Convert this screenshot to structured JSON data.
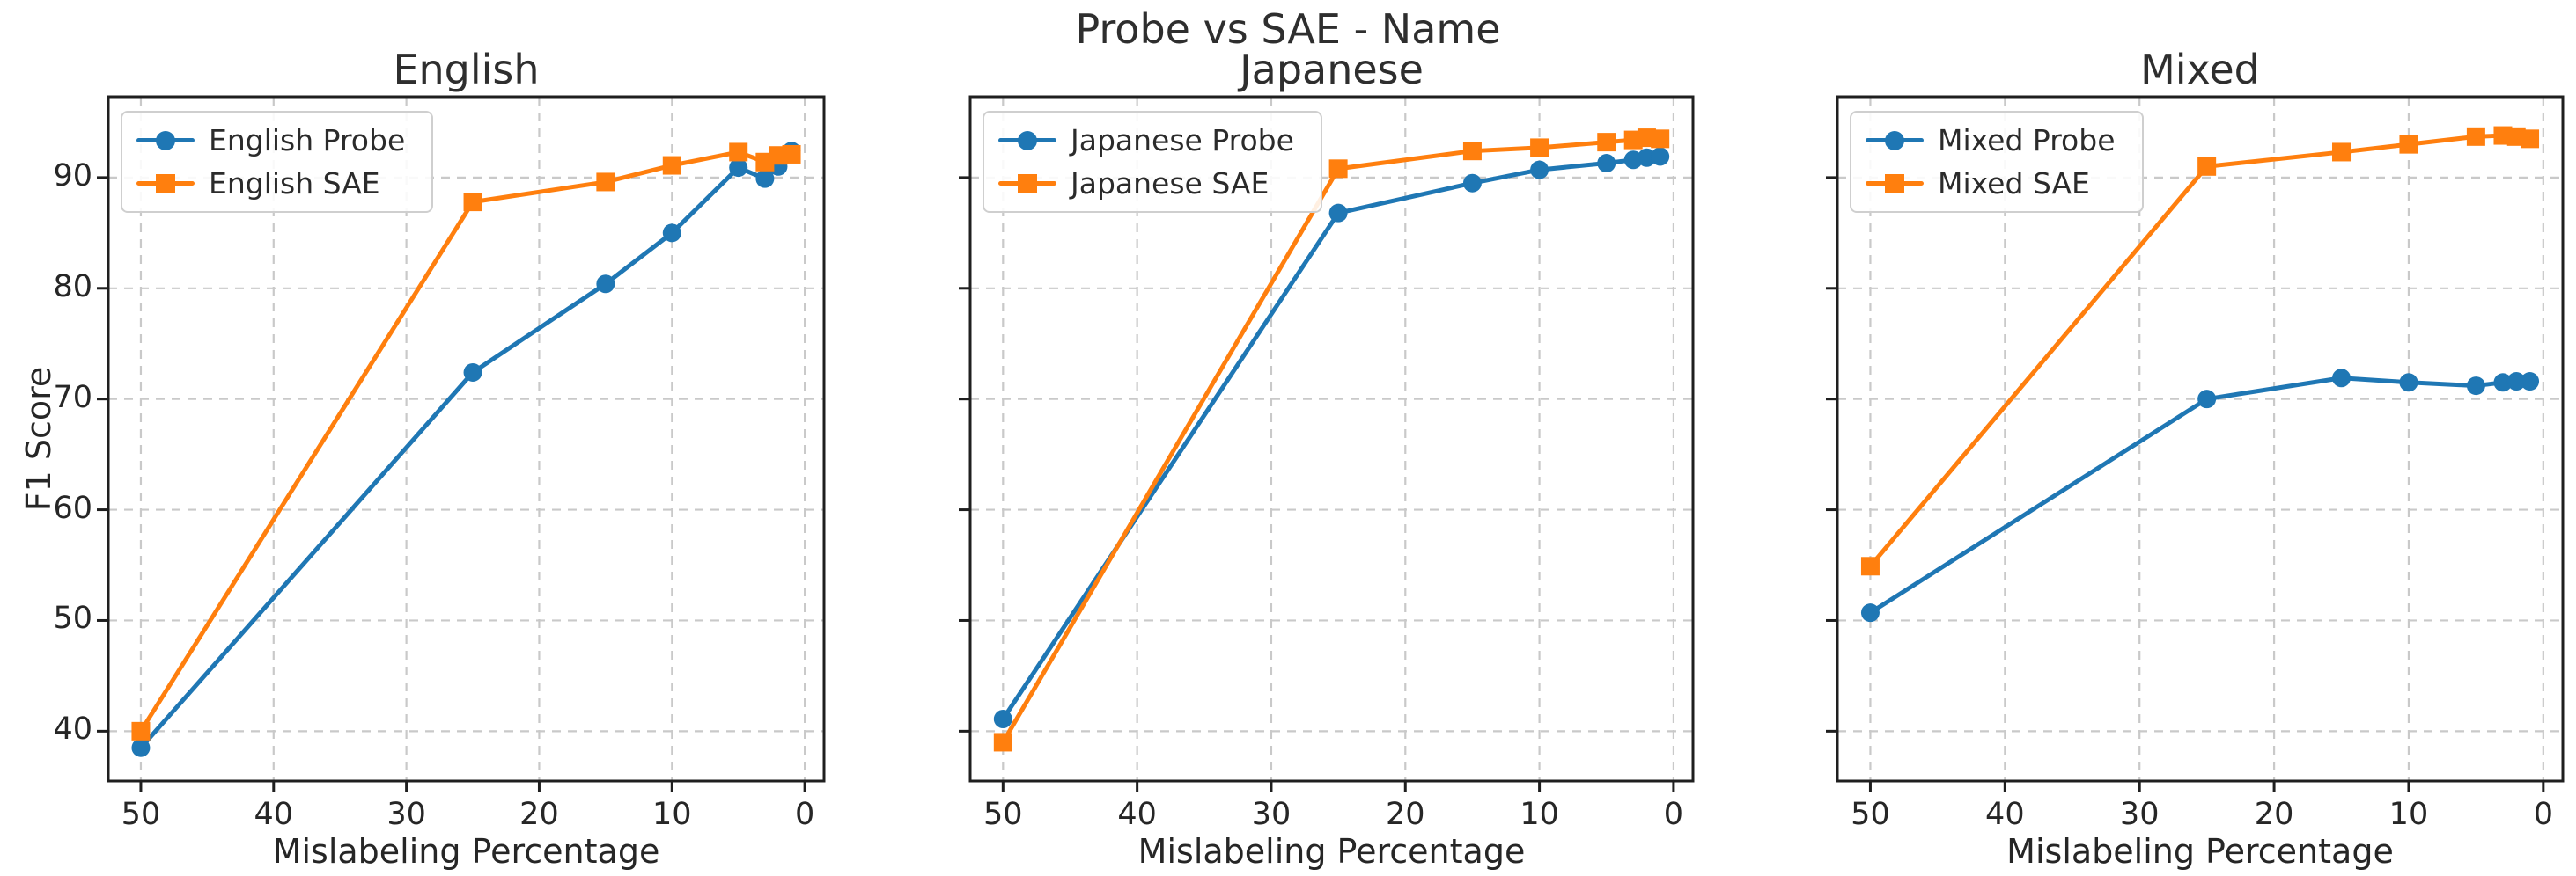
{
  "figure": {
    "suptitle": "Probe vs SAE - Name",
    "background": "#ffffff",
    "text_color": "#262626",
    "grid_color": "#c9c9c9",
    "spine_color": "#1f1f1f",
    "probe_color": "#1f77b4",
    "sae_color": "#ff7f0e"
  },
  "chart_data": [
    {
      "type": "line",
      "title": "English",
      "xlabel": "Mislabeling Percentage",
      "ylabel": "F1 Score",
      "x": [
        50,
        25,
        15,
        10,
        5,
        3,
        2,
        1
      ],
      "x_ticks": [
        50,
        40,
        30,
        20,
        10,
        0
      ],
      "y_ticks": [
        40,
        50,
        60,
        70,
        80,
        90
      ],
      "xlim": [
        52.45,
        -1.45
      ],
      "ylim": [
        35.5,
        97.3
      ],
      "grid": true,
      "legend_position": "upper left",
      "series": [
        {
          "name": "English Probe",
          "color": "#1f77b4",
          "marker": "circle",
          "values": [
            38.5,
            72.4,
            80.4,
            85.0,
            90.9,
            89.9,
            91.0,
            92.4
          ]
        },
        {
          "name": "English SAE",
          "color": "#ff7f0e",
          "marker": "square",
          "values": [
            40.0,
            87.8,
            89.6,
            91.1,
            92.3,
            91.4,
            92.0,
            92.1
          ]
        }
      ]
    },
    {
      "type": "line",
      "title": "Japanese",
      "xlabel": "Mislabeling Percentage",
      "ylabel": "",
      "x": [
        50,
        25,
        15,
        10,
        5,
        3,
        2,
        1
      ],
      "x_ticks": [
        50,
        40,
        30,
        20,
        10,
        0
      ],
      "y_ticks": [
        40,
        50,
        60,
        70,
        80,
        90
      ],
      "xlim": [
        52.45,
        -1.45
      ],
      "ylim": [
        35.5,
        97.3
      ],
      "grid": true,
      "legend_position": "upper left",
      "series": [
        {
          "name": "Japanese Probe",
          "color": "#1f77b4",
          "marker": "circle",
          "values": [
            41.1,
            86.8,
            89.5,
            90.7,
            91.3,
            91.6,
            91.8,
            91.9
          ]
        },
        {
          "name": "Japanese SAE",
          "color": "#ff7f0e",
          "marker": "square",
          "values": [
            39.0,
            90.8,
            92.4,
            92.7,
            93.2,
            93.4,
            93.6,
            93.5
          ]
        }
      ]
    },
    {
      "type": "line",
      "title": "Mixed",
      "xlabel": "Mislabeling Percentage",
      "ylabel": "",
      "x": [
        50,
        25,
        15,
        10,
        5,
        3,
        2,
        1
      ],
      "x_ticks": [
        50,
        40,
        30,
        20,
        10,
        0
      ],
      "y_ticks": [
        40,
        50,
        60,
        70,
        80,
        90
      ],
      "xlim": [
        52.45,
        -1.45
      ],
      "ylim": [
        35.5,
        97.3
      ],
      "grid": true,
      "legend_position": "upper left",
      "series": [
        {
          "name": "Mixed Probe",
          "color": "#1f77b4",
          "marker": "circle",
          "values": [
            50.7,
            70.0,
            71.9,
            71.5,
            71.2,
            71.5,
            71.6,
            71.6
          ]
        },
        {
          "name": "Mixed SAE",
          "color": "#ff7f0e",
          "marker": "square",
          "values": [
            54.9,
            91.0,
            92.3,
            93.0,
            93.7,
            93.8,
            93.7,
            93.5
          ]
        }
      ]
    }
  ]
}
